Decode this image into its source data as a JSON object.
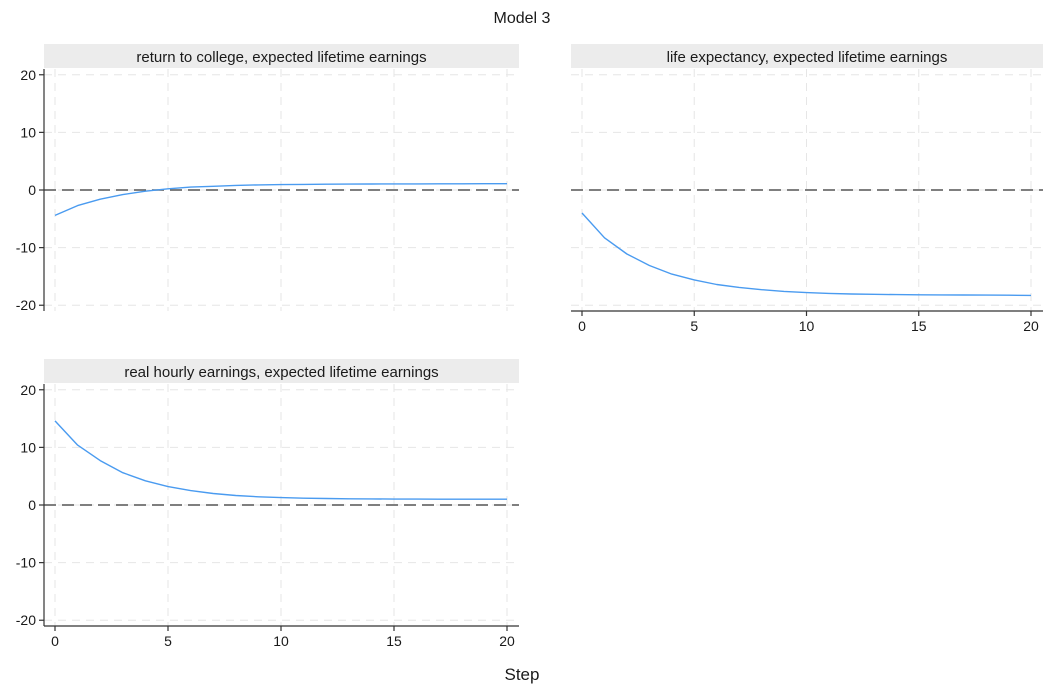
{
  "figure": {
    "title": "Model 3",
    "xlabel": "Step"
  },
  "colors": {
    "line": "#4a9bf0",
    "zero_line": "#555555",
    "grid": "#e6e6e6",
    "strip": "#ececec",
    "axis": "#333333"
  },
  "chart_data": [
    {
      "type": "line",
      "title": "return to college, expected lifetime earnings",
      "xlabel": "",
      "ylabel": "",
      "xlim": [
        0,
        20
      ],
      "ylim": [
        -21,
        21
      ],
      "xticks": [
        "0",
        "5",
        "10",
        "15",
        "20"
      ],
      "yticks": [
        "-20",
        "-10",
        "0",
        "10",
        "20"
      ],
      "show_xticks": false,
      "show_yticks": true,
      "grid": true,
      "reference_line": 0,
      "x": [
        0,
        1,
        2,
        3,
        4,
        5,
        6,
        7,
        8,
        9,
        10,
        11,
        12,
        13,
        14,
        15,
        16,
        17,
        18,
        19,
        20
      ],
      "values": [
        -4.4,
        -2.7,
        -1.6,
        -0.8,
        -0.2,
        0.2,
        0.5,
        0.65,
        0.8,
        0.88,
        0.93,
        0.97,
        1.0,
        1.02,
        1.04,
        1.05,
        1.06,
        1.07,
        1.08,
        1.09,
        1.1
      ]
    },
    {
      "type": "line",
      "title": "life expectancy, expected lifetime earnings",
      "xlabel": "",
      "ylabel": "",
      "xlim": [
        0,
        20
      ],
      "ylim": [
        -21,
        21
      ],
      "xticks": [
        "0",
        "5",
        "10",
        "15",
        "20"
      ],
      "yticks": [
        "-20",
        "-10",
        "0",
        "10",
        "20"
      ],
      "show_xticks": true,
      "show_yticks": false,
      "grid": true,
      "reference_line": 0,
      "x": [
        0,
        1,
        2,
        3,
        4,
        5,
        6,
        7,
        8,
        9,
        10,
        11,
        12,
        13,
        14,
        15,
        16,
        17,
        18,
        19,
        20
      ],
      "values": [
        -4.0,
        -8.3,
        -11.1,
        -13.1,
        -14.6,
        -15.6,
        -16.4,
        -16.9,
        -17.3,
        -17.6,
        -17.8,
        -17.95,
        -18.05,
        -18.1,
        -18.15,
        -18.18,
        -18.2,
        -18.22,
        -18.24,
        -18.26,
        -18.3
      ]
    },
    {
      "type": "line",
      "title": "real hourly earnings, expected lifetime earnings",
      "xlabel": "",
      "ylabel": "",
      "xlim": [
        0,
        20
      ],
      "ylim": [
        -21,
        21
      ],
      "xticks": [
        "0",
        "5",
        "10",
        "15",
        "20"
      ],
      "yticks": [
        "-20",
        "-10",
        "0",
        "10",
        "20"
      ],
      "show_xticks": true,
      "show_yticks": true,
      "grid": true,
      "reference_line": 0,
      "x": [
        0,
        1,
        2,
        3,
        4,
        5,
        6,
        7,
        8,
        9,
        10,
        11,
        12,
        13,
        14,
        15,
        16,
        17,
        18,
        19,
        20
      ],
      "values": [
        14.6,
        10.4,
        7.7,
        5.6,
        4.2,
        3.2,
        2.5,
        2.0,
        1.65,
        1.42,
        1.28,
        1.18,
        1.12,
        1.08,
        1.05,
        1.03,
        1.02,
        1.01,
        1.0,
        1.0,
        1.0
      ]
    }
  ]
}
